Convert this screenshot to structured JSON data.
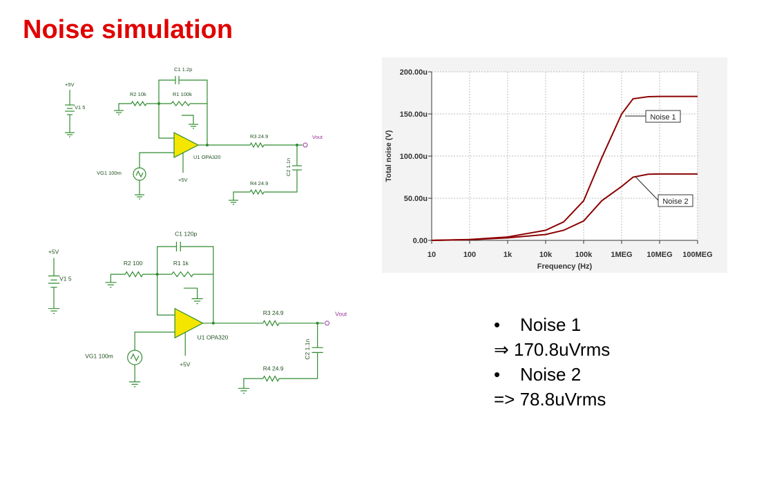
{
  "title": "Noise simulation",
  "schematics": [
    {
      "labels": [
        "+5V",
        "V1 5",
        "C1 1.2p",
        "R2 10k",
        "R1 100k",
        "R3 24.9",
        "Vout",
        "C2 1.1n",
        "U1 OPA320",
        "VG1 100m",
        "+5V",
        "R4 24.9"
      ]
    },
    {
      "labels": [
        "+5V",
        "V1 5",
        "C1 120p",
        "R2 100",
        "R1 1k",
        "R3 24.9",
        "Vout",
        "C2 1.1n",
        "U1 OPA320",
        "VG1 100m",
        "+5V",
        "R4 24.9"
      ]
    }
  ],
  "chart_data": {
    "type": "line",
    "xlabel": "Frequency (Hz)",
    "ylabel": "Total noise (V)",
    "xscale": "log",
    "grid": true,
    "x": [
      10,
      100,
      1000,
      10000,
      30000,
      100000,
      300000,
      1000000,
      2000000,
      5000000,
      10000000,
      100000000
    ],
    "series": [
      {
        "name": "Noise 1",
        "color": "#8b0000",
        "values": [
          0,
          1e-06,
          4e-06,
          1.2e-05,
          2.2e-05,
          4.7e-05,
          9.8e-05,
          0.00015,
          0.000168,
          0.0001705,
          0.0001708,
          0.0001708
        ]
      },
      {
        "name": "Noise 2",
        "color": "#8b0000",
        "values": [
          0,
          8e-07,
          3e-06,
          7e-06,
          1.2e-05,
          2.3e-05,
          4.7e-05,
          6.4e-05,
          7.5e-05,
          7.85e-05,
          7.88e-05,
          7.88e-05
        ]
      }
    ],
    "xlim": [
      10,
      100000000
    ],
    "xticks": [
      10,
      100,
      {
        "value": 1000,
        "label": "1k"
      },
      {
        "value": 10000,
        "label": "10k"
      },
      {
        "value": 100000,
        "label": "100k"
      },
      {
        "value": 1000000,
        "label": "1MEG"
      },
      {
        "value": 10000000,
        "label": "10MEG"
      },
      {
        "value": 100000000,
        "label": "100MEG"
      }
    ],
    "ylim": [
      0,
      0.0002
    ],
    "yticks": [
      {
        "value": 0,
        "label": "0.00"
      },
      {
        "value": 5e-05,
        "label": "50.00u"
      },
      {
        "value": 0.0001,
        "label": "100.00u"
      },
      {
        "value": 0.00015,
        "label": "150.00u"
      },
      {
        "value": 0.0002,
        "label": "200.00u"
      }
    ]
  },
  "notes": [
    "Noise 1",
    "⇒ 170.8uVrms",
    "Noise 2",
    "=> 78.8uVrms"
  ]
}
